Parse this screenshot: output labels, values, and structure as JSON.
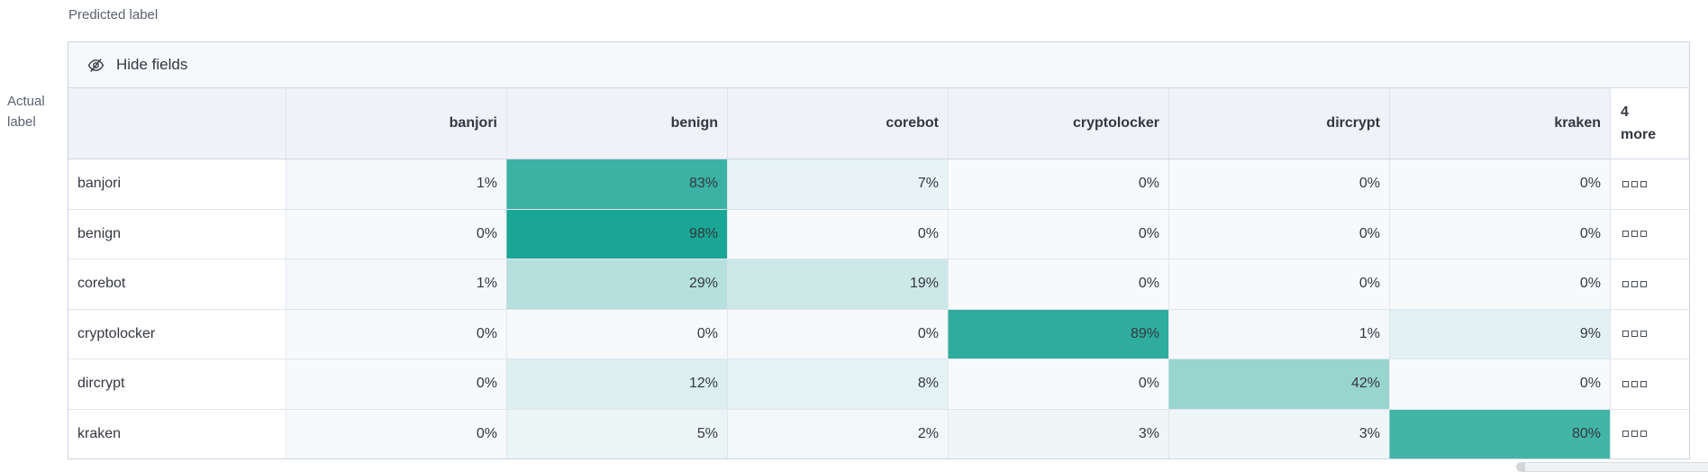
{
  "axes": {
    "predicted_label": "Predicted label",
    "actual_label": "Actual label"
  },
  "toolbar": {
    "hide_fields_label": "Hide fields"
  },
  "icons": {
    "hide_fields_icon": "eye-closed-icon",
    "row_overflow_icon": "boxes-horizontal-icon"
  },
  "colors": {
    "heatmap_base": "#f7f9fb",
    "heatmap_max": "#15a492",
    "header_background": "#f0f2f8",
    "toolbar_background": "#f7f8fc",
    "text": "#343741",
    "muted_text": "#5b6271"
  },
  "chart_data": {
    "type": "heatmap",
    "x_axis_title": "Predicted label",
    "y_axis_title": "Actual label",
    "columns": [
      "banjori",
      "benign",
      "corebot",
      "cryptolocker",
      "dircrypt",
      "kraken"
    ],
    "overflow_column_label": "4 more",
    "rows": [
      "banjori",
      "benign",
      "corebot",
      "cryptolocker",
      "dircrypt",
      "kraken"
    ],
    "values": [
      [
        1,
        83,
        7,
        0,
        0,
        0
      ],
      [
        0,
        98,
        0,
        0,
        0,
        0
      ],
      [
        1,
        29,
        19,
        0,
        0,
        0
      ],
      [
        0,
        0,
        0,
        89,
        1,
        9
      ],
      [
        0,
        12,
        8,
        0,
        42,
        0
      ],
      [
        0,
        5,
        2,
        3,
        3,
        80
      ]
    ],
    "value_suffix": "%",
    "color_scale": {
      "base": "#f7f9fb",
      "max": "#15a492"
    }
  }
}
